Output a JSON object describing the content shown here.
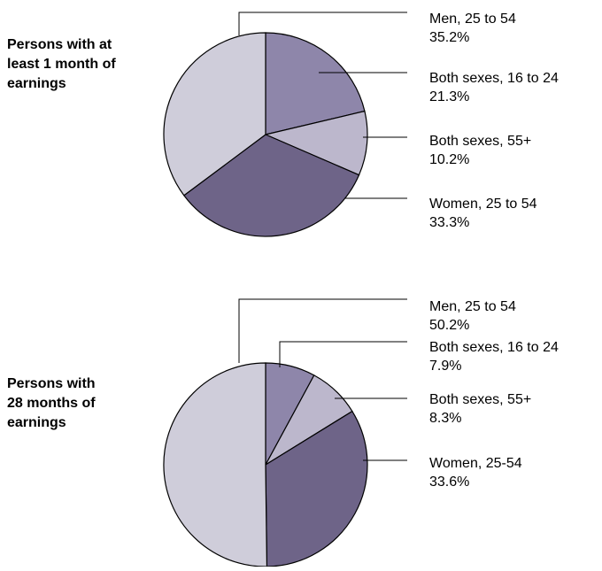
{
  "chart_data": [
    {
      "type": "pie",
      "title_lines": [
        "Persons with at",
        "least 1 month of",
        "earnings"
      ],
      "slices": [
        {
          "label": "Men, 25 to 54",
          "value_text": "35.2%",
          "value": 35.2,
          "color": "#cfcdda"
        },
        {
          "label": "Both sexes, 16 to 24",
          "value_text": "21.3%",
          "value": 21.3,
          "color": "#8e86aa"
        },
        {
          "label": "Both sexes, 55+",
          "value_text": "10.2%",
          "value": 10.2,
          "color": "#bcb7cc"
        },
        {
          "label": "Women, 25 to 54",
          "value_text": "33.3%",
          "value": 33.3,
          "color": "#6e6488"
        }
      ]
    },
    {
      "type": "pie",
      "title_lines": [
        "Persons with",
        "28 months of",
        "earnings"
      ],
      "slices": [
        {
          "label": "Men, 25 to 54",
          "value_text": "50.2%",
          "value": 50.2,
          "color": "#cfcdda"
        },
        {
          "label": "Both sexes, 16 to 24",
          "value_text": "7.9%",
          "value": 7.9,
          "color": "#8e86aa"
        },
        {
          "label": "Both sexes, 55+",
          "value_text": "8.3%",
          "value": 8.3,
          "color": "#bcb7cc"
        },
        {
          "label": "Women, 25-54",
          "value_text": "33.6%",
          "value": 33.6,
          "color": "#6e6488"
        }
      ]
    }
  ]
}
